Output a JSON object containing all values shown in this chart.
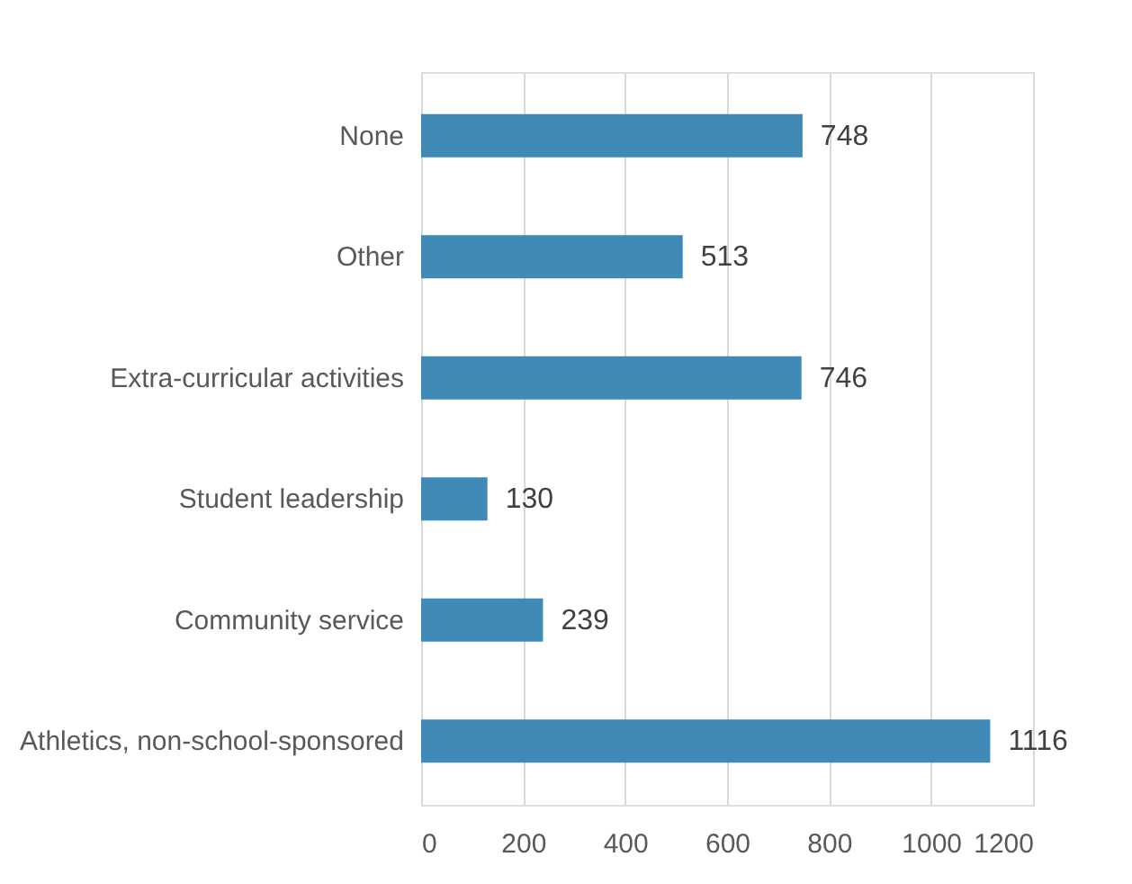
{
  "chart_data": {
    "type": "bar",
    "orientation": "horizontal",
    "categories": [
      "None",
      "Other",
      "Extra-curricular activities",
      "Student leadership",
      "Community service",
      "Athletics, non-school-sponsored"
    ],
    "values": [
      748,
      513,
      746,
      130,
      239,
      1116
    ],
    "color": "#3f8ab6",
    "xlim": [
      0,
      1200
    ],
    "xticks": [
      0,
      200,
      400,
      600,
      800,
      1000,
      1200
    ],
    "grid": "x",
    "data_labels": true
  }
}
